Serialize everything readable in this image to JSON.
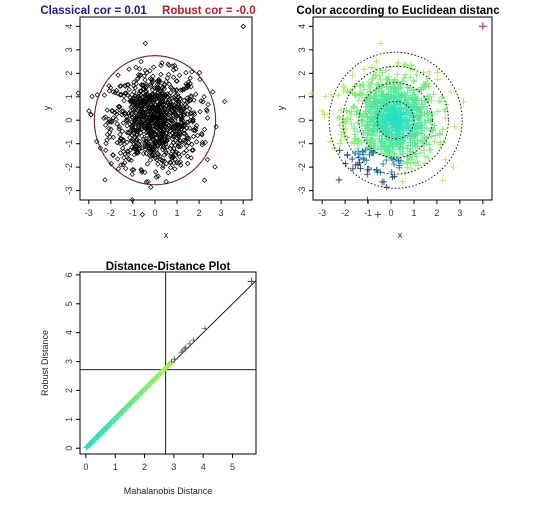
{
  "colors": {
    "classical_title": "#1a1a8c",
    "robust_title": "#b0202a",
    "ellipse": "#a01830",
    "points": "#000000",
    "gradient_near": "#20e0c8",
    "gradient_far": "#b4f04c",
    "outlier": "#b02040",
    "dark_cross": "#203070"
  },
  "chart_data": [
    {
      "type": "scatter",
      "title_parts": [
        "Classical cor = 0.01",
        "Robust cor = -0.0"
      ],
      "xlabel": "x",
      "ylabel": "y",
      "xlim": [
        -3.4,
        4.4
      ],
      "ylim": [
        -3.4,
        4.4
      ],
      "xticks": [
        "-3",
        "-2",
        "-1",
        "0",
        "1",
        "2",
        "3",
        "4"
      ],
      "yticks": [
        "-3",
        "-2",
        "-1",
        "0",
        "1",
        "2",
        "3",
        "4"
      ],
      "marker": "open-diamond",
      "n_points": 1000,
      "ellipse": {
        "center": [
          0.0,
          0.0
        ],
        "radius": 2.75
      },
      "outlier": {
        "x": 4.0,
        "y": 4.0
      },
      "grid": false
    },
    {
      "type": "scatter",
      "title": "Color according to Euclidean distanc",
      "xlabel": "x",
      "ylabel": "y",
      "xlim": [
        -3.4,
        4.4
      ],
      "ylim": [
        -3.4,
        4.4
      ],
      "xticks": [
        "-3",
        "-2",
        "-1",
        "0",
        "1",
        "2",
        "3",
        "4"
      ],
      "yticks": [
        "-3",
        "-2",
        "-1",
        "0",
        "1",
        "2",
        "3",
        "4"
      ],
      "marker": "plus",
      "n_points": 1000,
      "contours": {
        "center": [
          0.2,
          0.0
        ],
        "radii": [
          0.8,
          1.6,
          2.3,
          2.9
        ]
      },
      "outlier": {
        "x": 4.0,
        "y": 4.0
      },
      "grid": false
    },
    {
      "type": "scatter",
      "title": "Distance-Distance Plot",
      "xlabel": "Mahalanobis Distance",
      "ylabel": "Robust Distance",
      "xlim": [
        -0.2,
        5.8
      ],
      "ylim": [
        -0.2,
        6.1
      ],
      "xticks": [
        "0",
        "1",
        "2",
        "3",
        "4",
        "5"
      ],
      "yticks": [
        "0",
        "1",
        "2",
        "3",
        "4",
        "5",
        "6"
      ],
      "cutoff_x": 2.72,
      "cutoff_y": 2.72,
      "identity_line": true,
      "outlier": {
        "x": 5.65,
        "y": 5.77
      },
      "n_points": 1000,
      "grid": false
    }
  ]
}
